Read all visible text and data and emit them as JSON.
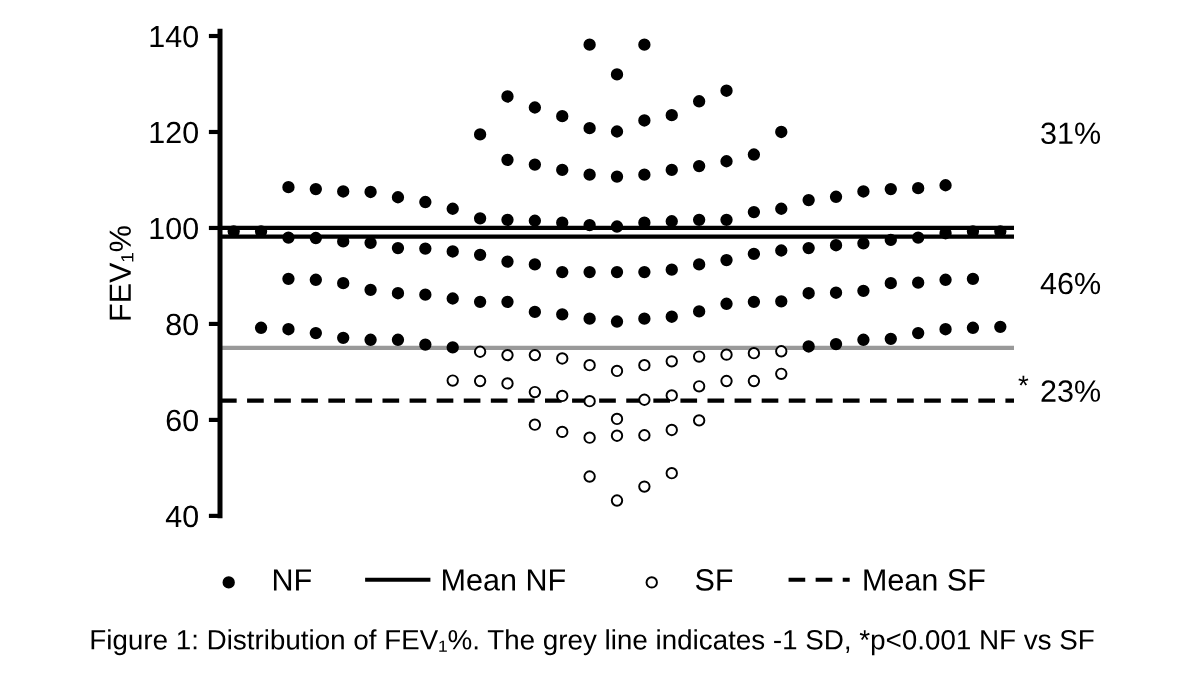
{
  "chart_data": {
    "type": "scatter",
    "ylabel": "FEV₁%",
    "categories": [
      null,
      null,
      null,
      null,
      null,
      null,
      null,
      null,
      null,
      null,
      null,
      null,
      null,
      null,
      null,
      null,
      null,
      null,
      null,
      null,
      null,
      null,
      null,
      null,
      null,
      null,
      null,
      null,
      null
    ],
    "ylim": [
      40,
      141
    ],
    "yticks": [
      40,
      60,
      80,
      100,
      120,
      140
    ],
    "grid": false,
    "legend": "bottom",
    "marker": "circle",
    "series": [
      {
        "name": "NF",
        "color": "#000000",
        "values": [
          null,
          null,
          null,
          null,
          null,
          null,
          null,
          null,
          null,
          null,
          null,
          null,
          null,
          138.2,
          132.0,
          138.2,
          null,
          null,
          null,
          null,
          null,
          null,
          null,
          null,
          null,
          null,
          null,
          null,
          null
        ]
      },
      {
        "color": "#000000",
        "values": [
          null,
          null,
          null,
          null,
          null,
          null,
          null,
          null,
          null,
          119.5,
          127.4,
          125.1,
          123.3,
          120.8,
          120.1,
          122.4,
          123.5,
          126.4,
          128.6,
          null,
          120.0,
          null,
          null,
          null,
          null,
          null,
          null,
          null,
          null
        ]
      },
      {
        "color": "#000000",
        "values": [
          null,
          null,
          null,
          null,
          null,
          null,
          null,
          null,
          null,
          null,
          114.2,
          113.2,
          112.1,
          111.1,
          110.7,
          111.1,
          112.1,
          112.9,
          113.9,
          115.3,
          null,
          null,
          null,
          null,
          null,
          null,
          null,
          null,
          null
        ]
      },
      {
        "color": "#000000",
        "values": [
          null,
          null,
          108.5,
          108.1,
          107.6,
          107.5,
          106.4,
          105.4,
          104.0,
          102.0,
          101.7,
          101.5,
          101.1,
          100.6,
          100.3,
          101.1,
          101.4,
          101.7,
          101.7,
          103.3,
          104.0,
          105.8,
          106.5,
          107.6,
          108.1,
          108.3,
          108.9,
          null,
          null
        ]
      },
      {
        "color": "#000000",
        "values": [
          99.3,
          99.3,
          98.0,
          97.9,
          97.2,
          96.9,
          95.8,
          95.7,
          95.1,
          94.4,
          93.0,
          92.4,
          90.8,
          90.8,
          90.8,
          90.8,
          91.3,
          92.4,
          93.3,
          94.6,
          95.3,
          95.8,
          96.4,
          96.8,
          97.5,
          98.0,
          98.9,
          99.3,
          99.3
        ]
      },
      {
        "color": "#000000",
        "values": [
          null,
          null,
          89.4,
          89.2,
          88.5,
          87.1,
          86.4,
          86.1,
          85.3,
          84.6,
          84.6,
          82.5,
          82.0,
          81.1,
          80.5,
          81.1,
          81.5,
          82.6,
          84.2,
          84.6,
          84.7,
          86.4,
          86.5,
          86.9,
          88.5,
          88.6,
          89.2,
          89.4,
          null
        ]
      },
      {
        "color": "#000000",
        "values": [
          null,
          79.2,
          78.9,
          78.1,
          77.1,
          76.7,
          76.7,
          75.7,
          75.1,
          null,
          null,
          null,
          null,
          null,
          null,
          null,
          null,
          null,
          null,
          null,
          null,
          75.3,
          75.8,
          76.7,
          76.9,
          78.1,
          78.9,
          79.2,
          79.4
        ]
      },
      {
        "name": "SF",
        "color": "#ffffff",
        "values": [
          null,
          null,
          null,
          null,
          null,
          null,
          null,
          null,
          null,
          74.2,
          73.5,
          73.5,
          72.8,
          71.4,
          70.2,
          71.4,
          72.2,
          73.2,
          73.6,
          73.9,
          74.3,
          null,
          null,
          null,
          null,
          null,
          null,
          null,
          null
        ]
      },
      {
        "color": "#ffffff",
        "values": [
          null,
          null,
          null,
          null,
          null,
          null,
          null,
          null,
          68.2,
          68.1,
          67.6,
          65.8,
          65.0,
          63.9,
          60.2,
          64.2,
          65.1,
          67.0,
          68.1,
          68.1,
          69.6,
          null,
          null,
          null,
          null,
          null,
          null,
          null,
          null
        ]
      },
      {
        "color": "#ffffff",
        "values": [
          null,
          null,
          null,
          null,
          null,
          null,
          null,
          null,
          null,
          null,
          null,
          59.0,
          57.5,
          56.3,
          56.7,
          56.8,
          57.9,
          59.9,
          null,
          null,
          null,
          null,
          null,
          null,
          null,
          null,
          null,
          null,
          null
        ]
      },
      {
        "color": "#ffffff",
        "values": [
          null,
          null,
          null,
          null,
          null,
          null,
          null,
          null,
          null,
          null,
          null,
          null,
          null,
          48.2,
          43.2,
          46.1,
          48.9,
          null,
          null,
          null,
          null,
          null,
          null,
          null,
          null,
          null,
          null,
          null,
          null
        ]
      }
    ],
    "ref_lines": [
      {
        "axis": "y",
        "value": 100,
        "color": "#000000",
        "line_style": "solid"
      },
      {
        "axis": "y",
        "value": 98.2,
        "label": "Mean NF",
        "color": "#000000",
        "line_style": "solid"
      },
      {
        "axis": "y",
        "value": 75,
        "color": "#999999",
        "line_style": "solid"
      },
      {
        "axis": "y",
        "value": 64,
        "label": "Mean SF",
        "color": "#000000",
        "line_style": "dashed"
      }
    ],
    "annotations": [
      "31%",
      "46%",
      "23%",
      "*",
      "Figure 1: Distribution of FEV₁%. The grey line indicates -1 SD, *p<0.001 NF vs SF"
    ]
  }
}
